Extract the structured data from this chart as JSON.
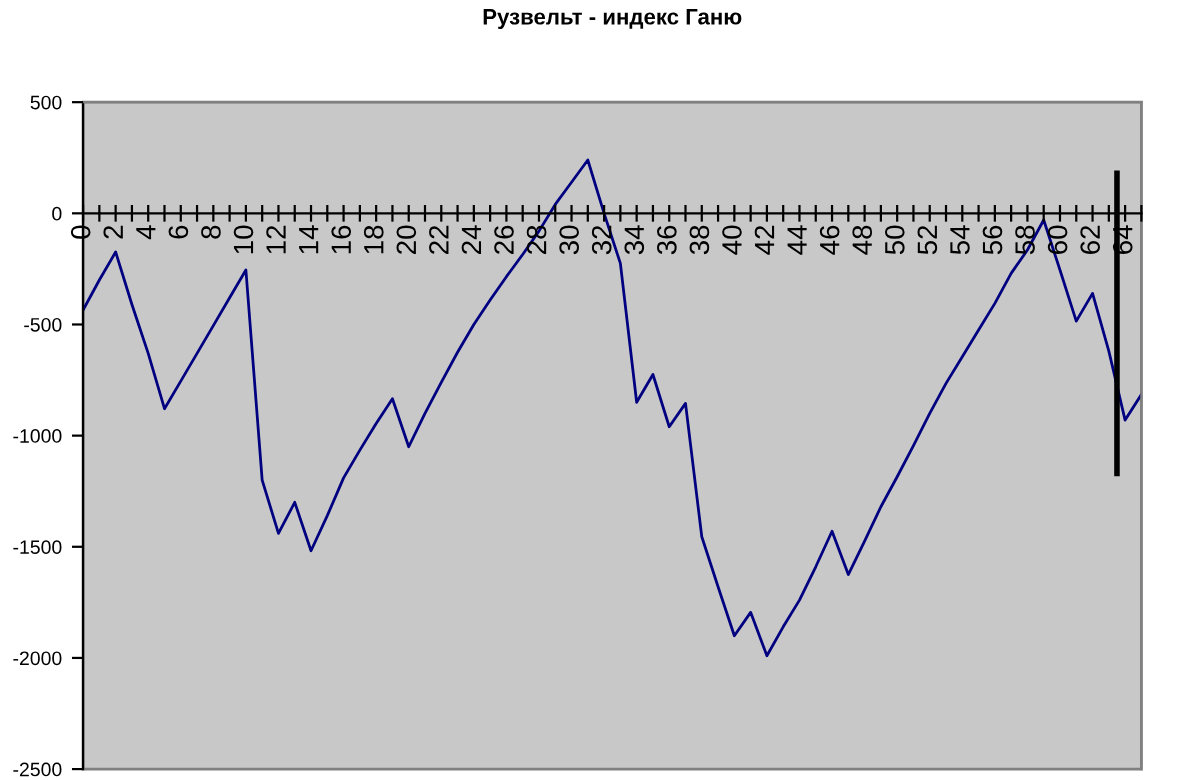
{
  "chart_data": {
    "type": "line",
    "title": "Рузвельт - индекс Ганю",
    "x": [
      0,
      1,
      2,
      3,
      4,
      5,
      6,
      7,
      8,
      9,
      10,
      11,
      12,
      13,
      14,
      15,
      16,
      17,
      18,
      19,
      20,
      21,
      22,
      23,
      24,
      25,
      26,
      27,
      28,
      29,
      30,
      31,
      32,
      33,
      34,
      35,
      36,
      37,
      38,
      39,
      40,
      41,
      42,
      43,
      44,
      45,
      46,
      47,
      48,
      49,
      50,
      51,
      52,
      53,
      54,
      55,
      56,
      57,
      58,
      59,
      60,
      61,
      62,
      63,
      64,
      65
    ],
    "series": [
      {
        "color": "#000080",
        "values": [
          -435,
          -300,
          -174,
          -410,
          -630,
          -879,
          -755,
          -630,
          -505,
          -380,
          -255,
          -1200,
          -1440,
          -1300,
          -1518,
          -1360,
          -1190,
          -1065,
          -945,
          -834,
          -1050,
          -900,
          -760,
          -625,
          -500,
          -390,
          -285,
          -185,
          -80,
          40,
          140,
          240,
          0,
          -225,
          -850,
          -725,
          -960,
          -855,
          -1455,
          -1680,
          -1900,
          -1795,
          -1990,
          -1860,
          -1740,
          -1590,
          -1430,
          -1625,
          -1475,
          -1320,
          -1185,
          -1045,
          -900,
          -765,
          -645,
          -525,
          -405,
          -270,
          -165,
          -30,
          -255,
          -485,
          -360,
          -620,
          -930,
          -815
        ]
      },
      {
        "type": "line",
        "color": "#000000",
        "x": [
          63.5,
          63.5
        ],
        "values": [
          180,
          -1170
        ]
      }
    ],
    "xlim": [
      0,
      65
    ],
    "xticks": [
      0,
      {
        "value": 1,
        "label": null
      },
      2,
      {
        "value": 3,
        "label": null
      },
      4,
      {
        "value": 5,
        "label": null
      },
      6,
      {
        "value": 7,
        "label": null
      },
      8,
      {
        "value": 9,
        "label": null
      },
      10,
      {
        "value": 11,
        "label": null
      },
      12,
      {
        "value": 13,
        "label": null
      },
      14,
      {
        "value": 15,
        "label": null
      },
      16,
      {
        "value": 17,
        "label": null
      },
      18,
      {
        "value": 19,
        "label": null
      },
      20,
      {
        "value": 21,
        "label": null
      },
      22,
      {
        "value": 23,
        "label": null
      },
      24,
      {
        "value": 25,
        "label": null
      },
      26,
      {
        "value": 27,
        "label": null
      },
      28,
      {
        "value": 29,
        "label": null
      },
      30,
      {
        "value": 31,
        "label": null
      },
      32,
      {
        "value": 33,
        "label": null
      },
      34,
      {
        "value": 35,
        "label": null
      },
      36,
      {
        "value": 37,
        "label": null
      },
      38,
      {
        "value": 39,
        "label": null
      },
      40,
      {
        "value": 41,
        "label": null
      },
      42,
      {
        "value": 43,
        "label": null
      },
      44,
      {
        "value": 45,
        "label": null
      },
      46,
      {
        "value": 47,
        "label": null
      },
      48,
      {
        "value": 49,
        "label": null
      },
      50,
      {
        "value": 51,
        "label": null
      },
      52,
      {
        "value": 53,
        "label": null
      },
      54,
      {
        "value": 55,
        "label": null
      },
      56,
      {
        "value": 57,
        "label": null
      },
      58,
      {
        "value": 59,
        "label": null
      },
      60,
      {
        "value": 61,
        "label": null
      },
      62,
      {
        "value": 63,
        "label": null
      },
      64,
      {
        "value": 65,
        "label": null
      }
    ],
    "ylim": [
      -2500,
      500
    ],
    "yticks": [
      -2500,
      -2000,
      -1500,
      -1000,
      -500,
      0,
      500
    ]
  }
}
